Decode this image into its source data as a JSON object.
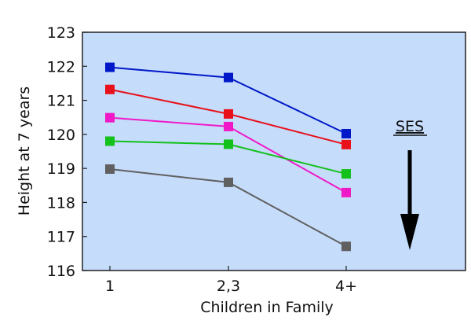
{
  "chart_data": {
    "type": "line",
    "title": "",
    "xlabel": "Children in Family",
    "ylabel": "Height at 7 years",
    "categories": [
      "1",
      "2,3",
      "4+"
    ],
    "ylim": [
      116,
      123
    ],
    "yticks": [
      "116",
      "117",
      "118",
      "119",
      "120",
      "121",
      "122",
      "123"
    ],
    "grid": false,
    "background_color": "#c5dcfb",
    "annotation": {
      "text": "SES",
      "arrow": "down"
    },
    "series": [
      {
        "color": "#0018c8",
        "values": [
          121.97,
          121.67,
          120.02
        ]
      },
      {
        "color": "#e8101a",
        "values": [
          121.32,
          120.6,
          119.7
        ]
      },
      {
        "color": "#f019c8",
        "values": [
          120.49,
          120.23,
          118.29
        ]
      },
      {
        "color": "#14c01a",
        "values": [
          119.8,
          119.71,
          118.84
        ]
      },
      {
        "color": "#606060",
        "values": [
          118.98,
          118.59,
          116.71
        ]
      }
    ]
  }
}
